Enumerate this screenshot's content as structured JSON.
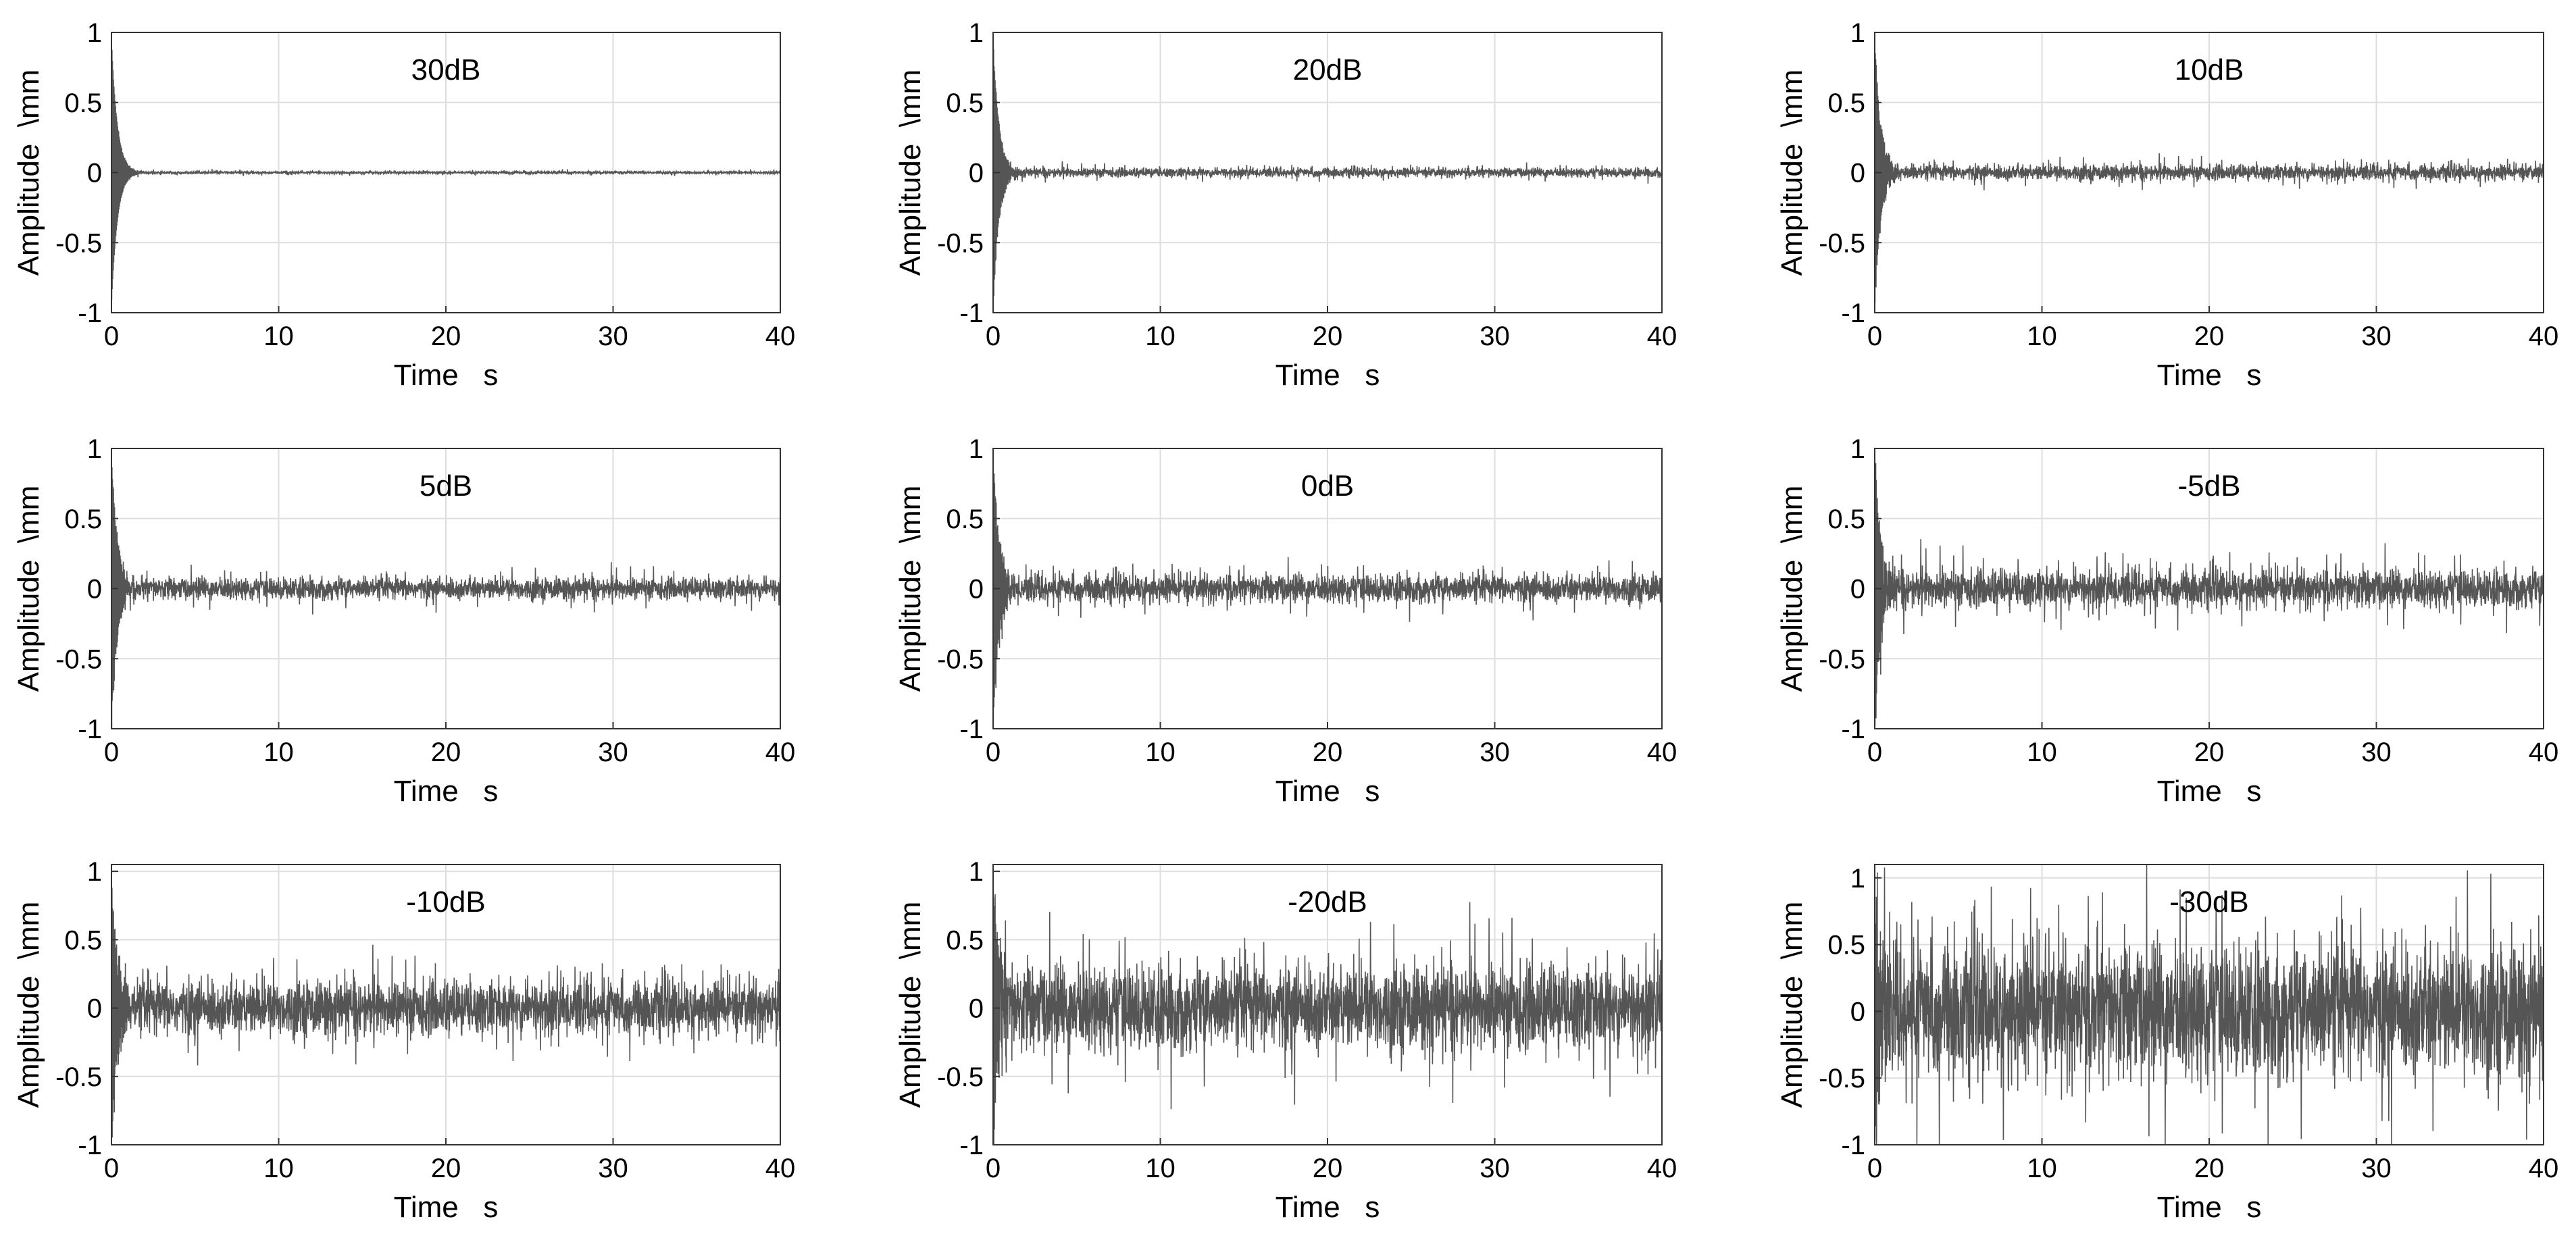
{
  "figure": {
    "rows": 3,
    "cols": 3,
    "colors": {
      "signal": "#555555",
      "grid": "#dedede",
      "axes": "#333333"
    }
  },
  "chart_data": [
    {
      "type": "line",
      "title": "30dB",
      "xlabel": "Time   s",
      "ylabel": "Amplitude  \\mm",
      "xlim": [
        0,
        40
      ],
      "ylim": [
        -1,
        1
      ],
      "xticks": [
        0,
        10,
        20,
        30,
        40
      ],
      "yticks": [
        -1,
        -0.5,
        0,
        0.5,
        1
      ],
      "yticklabels": [
        "-1",
        "-0.5",
        "0",
        "0.5",
        "1"
      ],
      "grid": true,
      "series": [
        {
          "decay_peak": 0.95,
          "decay_time": 0.35,
          "noise_band": 0.008,
          "noise_spike": 0.02
        }
      ]
    },
    {
      "type": "line",
      "title": "20dB",
      "xlabel": "Time   s",
      "ylabel": "Amplitude  \\mm",
      "xlim": [
        0,
        40
      ],
      "ylim": [
        -1,
        1
      ],
      "xticks": [
        0,
        10,
        20,
        30,
        40
      ],
      "yticks": [
        -1,
        -0.5,
        0,
        0.5,
        1
      ],
      "yticklabels": [
        "-1",
        "-0.5",
        "0",
        "0.5",
        "1"
      ],
      "grid": true,
      "series": [
        {
          "decay_peak": 0.95,
          "decay_time": 0.35,
          "noise_band": 0.03,
          "noise_spike": 0.05
        }
      ]
    },
    {
      "type": "line",
      "title": "10dB",
      "xlabel": "Time   s",
      "ylabel": "Amplitude  \\mm",
      "xlim": [
        0,
        40
      ],
      "ylim": [
        -1,
        1
      ],
      "xticks": [
        0,
        10,
        20,
        30,
        40
      ],
      "yticks": [
        -1,
        -0.5,
        0,
        0.5,
        1
      ],
      "yticklabels": [
        "-1",
        "-0.5",
        "0",
        "0.5",
        "1"
      ],
      "grid": true,
      "series": [
        {
          "decay_peak": 0.95,
          "decay_time": 0.35,
          "noise_band": 0.05,
          "noise_spike": 0.09
        }
      ]
    },
    {
      "type": "line",
      "title": "5dB",
      "xlabel": "Time   s",
      "ylabel": "Amplitude  \\mm",
      "xlim": [
        0,
        40
      ],
      "ylim": [
        -1,
        1
      ],
      "xticks": [
        0,
        10,
        20,
        30,
        40
      ],
      "yticks": [
        -1,
        -0.5,
        0,
        0.5,
        1
      ],
      "yticklabels": [
        "-1",
        "-0.5",
        "0",
        "0.5",
        "1"
      ],
      "grid": true,
      "series": [
        {
          "decay_peak": 0.95,
          "decay_time": 0.35,
          "noise_band": 0.07,
          "noise_spike": 0.12
        }
      ]
    },
    {
      "type": "line",
      "title": "0dB",
      "xlabel": "Time   s",
      "ylabel": "Amplitude  \\mm",
      "xlim": [
        0,
        40
      ],
      "ylim": [
        -1,
        1
      ],
      "xticks": [
        0,
        10,
        20,
        30,
        40
      ],
      "yticks": [
        -1,
        -0.5,
        0,
        0.5,
        1
      ],
      "yticklabels": [
        "-1",
        "-0.5",
        "0",
        "0.5",
        "1"
      ],
      "grid": true,
      "series": [
        {
          "decay_peak": 0.95,
          "decay_time": 0.35,
          "noise_band": 0.09,
          "noise_spike": 0.16
        }
      ]
    },
    {
      "type": "line",
      "title": "-5dB",
      "xlabel": "Time   s",
      "ylabel": "Amplitude  \\mm",
      "xlim": [
        0,
        40
      ],
      "ylim": [
        -1,
        1
      ],
      "xticks": [
        0,
        10,
        20,
        30,
        40
      ],
      "yticks": [
        -1,
        -0.5,
        0,
        0.5,
        1
      ],
      "yticklabels": [
        "-1",
        "-0.5",
        "0",
        "0.5",
        "1"
      ],
      "grid": true,
      "series": [
        {
          "decay_peak": 0.95,
          "decay_time": 0.35,
          "noise_band": 0.12,
          "noise_spike": 0.24
        }
      ]
    },
    {
      "type": "line",
      "title": "-10dB",
      "xlabel": "Time   s",
      "ylabel": "Amplitude  \\mm",
      "xlim": [
        0,
        40
      ],
      "ylim": [
        -1,
        1.05
      ],
      "xticks": [
        0,
        10,
        20,
        30,
        40
      ],
      "yticks": [
        -1,
        -0.5,
        0,
        0.5,
        1
      ],
      "yticklabels": [
        "-1",
        "-0.5",
        "0",
        "0.5",
        "1"
      ],
      "grid": true,
      "series": [
        {
          "decay_peak": 0.95,
          "decay_time": 0.35,
          "noise_band": 0.18,
          "noise_spike": 0.28
        }
      ]
    },
    {
      "type": "line",
      "title": "-20dB",
      "xlabel": "Time   s",
      "ylabel": "Amplitude  \\mm",
      "xlim": [
        0,
        40
      ],
      "ylim": [
        -1,
        1.05
      ],
      "xticks": [
        0,
        10,
        20,
        30,
        40
      ],
      "yticks": [
        -1,
        -0.5,
        0,
        0.5,
        1
      ],
      "yticklabels": [
        "-1",
        "-0.5",
        "0",
        "0.5",
        "1"
      ],
      "grid": true,
      "series": [
        {
          "decay_peak": 0.95,
          "decay_time": 0.35,
          "noise_band": 0.28,
          "noise_spike": 0.5
        }
      ]
    },
    {
      "type": "line",
      "title": "-30dB",
      "xlabel": "Time   s",
      "ylabel": "Amplitude  \\mm",
      "xlim": [
        0,
        40
      ],
      "ylim": [
        -1,
        1.1
      ],
      "xticks": [
        0,
        10,
        20,
        30,
        40
      ],
      "yticks": [
        -1,
        -0.5,
        0,
        0.5,
        1
      ],
      "yticklabels": [
        "-1",
        "-0.5",
        "0",
        "0.5",
        "1"
      ],
      "grid": true,
      "series": [
        {
          "decay_peak": 0.95,
          "decay_time": 0.35,
          "noise_band": 0.45,
          "noise_spike": 0.85
        }
      ]
    }
  ]
}
